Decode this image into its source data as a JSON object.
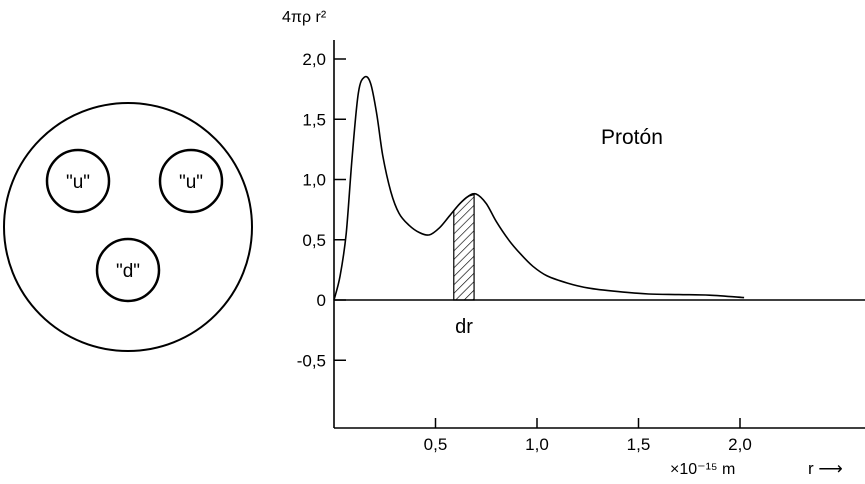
{
  "proton_model": {
    "quarks": [
      {
        "label": "\"u\""
      },
      {
        "label": "\"u\""
      },
      {
        "label": "\"d\""
      }
    ]
  },
  "chart_data": {
    "type": "line",
    "title": "",
    "ylabel": "4πρ r²",
    "xlabel_unit": "×10⁻¹⁵ m",
    "x_axis_symbol": "r ⟶",
    "curve_label": "Protón",
    "element_label": "dr",
    "xlim": [
      0,
      2.6
    ],
    "ylim": [
      -1.05,
      2.0
    ],
    "x_ticks": [
      {
        "value": 0.5,
        "label": "0,5"
      },
      {
        "value": 1.0,
        "label": "1,0"
      },
      {
        "value": 1.5,
        "label": "1,5"
      },
      {
        "value": 2.0,
        "label": "2,0"
      }
    ],
    "y_ticks": [
      {
        "value": 2.0,
        "label": "2,0"
      },
      {
        "value": 1.5,
        "label": "1,5"
      },
      {
        "value": 1.0,
        "label": "1,0"
      },
      {
        "value": 0.5,
        "label": "0,5"
      },
      {
        "value": 0.0,
        "label": "0"
      },
      {
        "value": -0.5,
        "label": "-0,5"
      }
    ],
    "series": [
      {
        "x": [
          0.0,
          0.03,
          0.06,
          0.09,
          0.12,
          0.15,
          0.18,
          0.21,
          0.24,
          0.28,
          0.32,
          0.37,
          0.42,
          0.47,
          0.52,
          0.57,
          0.62,
          0.66,
          0.7,
          0.75,
          0.8,
          0.86,
          0.92,
          0.98,
          1.05,
          1.15,
          1.25,
          1.4,
          1.55,
          1.7,
          1.85,
          2.02
        ],
        "values": [
          0.0,
          0.2,
          0.55,
          1.2,
          1.72,
          1.85,
          1.8,
          1.55,
          1.2,
          0.9,
          0.72,
          0.62,
          0.56,
          0.54,
          0.6,
          0.7,
          0.8,
          0.86,
          0.88,
          0.8,
          0.65,
          0.5,
          0.38,
          0.28,
          0.2,
          0.14,
          0.1,
          0.07,
          0.05,
          0.045,
          0.04,
          0.02
        ]
      }
    ],
    "shaded_interval": [
      0.59,
      0.69
    ]
  }
}
